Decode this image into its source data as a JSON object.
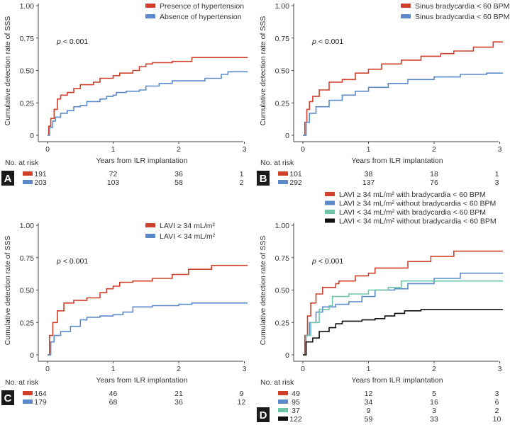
{
  "chart_data": [
    {
      "type": "line",
      "panel": "A",
      "ylabel": "Cumulative detection rate of SSS",
      "xlabel": "Years from ILR implantation",
      "yticks": [
        "0",
        "0.25",
        "0.50",
        "0.75",
        "1.00"
      ],
      "xticks": [
        "0",
        "1",
        "2",
        "3"
      ],
      "ylim": [
        0,
        1
      ],
      "xlim": [
        0,
        3.05
      ],
      "p_text": "< 0.001",
      "p_symbol": "p",
      "risk_label": "No. at risk",
      "legend_position": "top-right",
      "series": [
        {
          "name": "Presence of hypertension",
          "color": "#d0402b",
          "risk": [
            "191",
            "72",
            "36",
            "1"
          ],
          "points": [
            [
              0,
              0
            ],
            [
              0.02,
              0.07
            ],
            [
              0.05,
              0.13
            ],
            [
              0.1,
              0.2
            ],
            [
              0.15,
              0.28
            ],
            [
              0.2,
              0.31
            ],
            [
              0.3,
              0.33
            ],
            [
              0.4,
              0.36
            ],
            [
              0.5,
              0.39
            ],
            [
              0.7,
              0.41
            ],
            [
              0.8,
              0.44
            ],
            [
              1.0,
              0.46
            ],
            [
              1.1,
              0.48
            ],
            [
              1.3,
              0.5
            ],
            [
              1.4,
              0.53
            ],
            [
              1.5,
              0.55
            ],
            [
              1.6,
              0.56
            ],
            [
              1.9,
              0.57
            ],
            [
              2.2,
              0.6
            ],
            [
              3.05,
              0.6
            ]
          ]
        },
        {
          "name": "Absence of hypertension",
          "color": "#5b8ac9",
          "risk": [
            "203",
            "103",
            "58",
            "2"
          ],
          "points": [
            [
              0,
              0
            ],
            [
              0.03,
              0.06
            ],
            [
              0.08,
              0.11
            ],
            [
              0.12,
              0.14
            ],
            [
              0.2,
              0.17
            ],
            [
              0.3,
              0.19
            ],
            [
              0.4,
              0.22
            ],
            [
              0.5,
              0.23
            ],
            [
              0.6,
              0.26
            ],
            [
              0.8,
              0.28
            ],
            [
              0.9,
              0.3
            ],
            [
              1.0,
              0.31
            ],
            [
              1.05,
              0.33
            ],
            [
              1.2,
              0.34
            ],
            [
              1.4,
              0.35
            ],
            [
              1.5,
              0.38
            ],
            [
              1.7,
              0.4
            ],
            [
              1.9,
              0.42
            ],
            [
              2.4,
              0.44
            ],
            [
              2.65,
              0.47
            ],
            [
              2.75,
              0.49
            ],
            [
              3.05,
              0.49
            ]
          ]
        }
      ]
    },
    {
      "type": "line",
      "panel": "B",
      "ylabel": "Cumulative detection rate of SSS",
      "xlabel": "Years from ILR implantation",
      "yticks": [
        "0",
        "0.25",
        "0.50",
        "0.75",
        "1.00"
      ],
      "xticks": [
        "0",
        "1",
        "2",
        "3"
      ],
      "ylim": [
        0,
        1
      ],
      "xlim": [
        0,
        3.05
      ],
      "p_text": "< 0.001",
      "p_symbol": "p",
      "risk_label": "No. at risk",
      "legend_position": "top-right",
      "series": [
        {
          "name": "Sinus bradycardia < 60 BPM (+)",
          "color": "#d0402b",
          "risk": [
            "101",
            "38",
            "18",
            "1"
          ],
          "points": [
            [
              0,
              0
            ],
            [
              0.03,
              0.1
            ],
            [
              0.06,
              0.2
            ],
            [
              0.1,
              0.26
            ],
            [
              0.15,
              0.3
            ],
            [
              0.25,
              0.35
            ],
            [
              0.4,
              0.41
            ],
            [
              0.6,
              0.43
            ],
            [
              0.8,
              0.48
            ],
            [
              1.0,
              0.51
            ],
            [
              1.2,
              0.55
            ],
            [
              1.5,
              0.58
            ],
            [
              1.8,
              0.61
            ],
            [
              2.1,
              0.63
            ],
            [
              2.3,
              0.65
            ],
            [
              2.6,
              0.68
            ],
            [
              2.9,
              0.72
            ],
            [
              3.05,
              0.72
            ]
          ]
        },
        {
          "name": "Sinus bradycardia < 60 BPM (–)",
          "color": "#5b8ac9",
          "risk": [
            "292",
            "137",
            "76",
            "3"
          ],
          "points": [
            [
              0,
              0
            ],
            [
              0.05,
              0.1
            ],
            [
              0.1,
              0.17
            ],
            [
              0.2,
              0.22
            ],
            [
              0.4,
              0.27
            ],
            [
              0.6,
              0.31
            ],
            [
              0.8,
              0.34
            ],
            [
              1.0,
              0.37
            ],
            [
              1.3,
              0.4
            ],
            [
              1.6,
              0.43
            ],
            [
              2.0,
              0.45
            ],
            [
              2.4,
              0.47
            ],
            [
              2.8,
              0.48
            ],
            [
              3.05,
              0.48
            ]
          ]
        }
      ]
    },
    {
      "type": "line",
      "panel": "C",
      "ylabel": "Cumulative detection rate of SSS",
      "xlabel": "Years from ILR implantation",
      "yticks": [
        "0",
        "0.25",
        "0.50",
        "0.75",
        "1.00"
      ],
      "xticks": [
        "0",
        "1",
        "2",
        "3"
      ],
      "ylim": [
        0,
        1
      ],
      "xlim": [
        0,
        3.05
      ],
      "p_text": "< 0.001",
      "p_symbol": "p",
      "risk_label": "No. at risk",
      "legend_position": "top-right",
      "series": [
        {
          "name": "LAVI ≥ 34 mL/m²",
          "color": "#d0402b",
          "risk": [
            "164",
            "46",
            "21",
            "9"
          ],
          "points": [
            [
              0,
              0
            ],
            [
              0.03,
              0.15
            ],
            [
              0.08,
              0.25
            ],
            [
              0.15,
              0.34
            ],
            [
              0.25,
              0.4
            ],
            [
              0.4,
              0.42
            ],
            [
              0.6,
              0.44
            ],
            [
              0.8,
              0.48
            ],
            [
              0.9,
              0.51
            ],
            [
              1.0,
              0.53
            ],
            [
              1.1,
              0.56
            ],
            [
              1.3,
              0.57
            ],
            [
              1.6,
              0.59
            ],
            [
              1.9,
              0.62
            ],
            [
              2.15,
              0.66
            ],
            [
              2.5,
              0.69
            ],
            [
              3.05,
              0.69
            ]
          ]
        },
        {
          "name": "LAVI < 34 mL/m²",
          "color": "#5b8ac9",
          "risk": [
            "179",
            "68",
            "36",
            "12"
          ],
          "points": [
            [
              0,
              0
            ],
            [
              0.05,
              0.1
            ],
            [
              0.1,
              0.15
            ],
            [
              0.2,
              0.18
            ],
            [
              0.35,
              0.22
            ],
            [
              0.5,
              0.27
            ],
            [
              0.6,
              0.29
            ],
            [
              0.8,
              0.3
            ],
            [
              1.0,
              0.31
            ],
            [
              1.15,
              0.33
            ],
            [
              1.3,
              0.37
            ],
            [
              1.6,
              0.38
            ],
            [
              2.0,
              0.39
            ],
            [
              2.2,
              0.4
            ],
            [
              3.05,
              0.4
            ]
          ]
        }
      ]
    },
    {
      "type": "line",
      "panel": "D",
      "ylabel": "Cumulative detection rate of SSS",
      "xlabel": "Years from ILR implantation",
      "yticks": [
        "0",
        "0.25",
        "0.50",
        "0.75",
        "1.00"
      ],
      "xticks": [
        "0",
        "1",
        "2",
        "3"
      ],
      "ylim": [
        0,
        1
      ],
      "xlim": [
        0,
        3.05
      ],
      "p_text": "< 0.001",
      "p_symbol": "p",
      "risk_label": "No. at risk",
      "legend_position": "top-right",
      "series": [
        {
          "name": "LAVI ≥ 34 mL/m² with bradycardia < 60 BPM",
          "color": "#d0402b",
          "risk": [
            "49",
            "12",
            "5",
            "3"
          ],
          "points": [
            [
              0,
              0
            ],
            [
              0.03,
              0.15
            ],
            [
              0.07,
              0.3
            ],
            [
              0.12,
              0.4
            ],
            [
              0.2,
              0.47
            ],
            [
              0.3,
              0.52
            ],
            [
              0.5,
              0.55
            ],
            [
              0.55,
              0.57
            ],
            [
              0.8,
              0.61
            ],
            [
              1.0,
              0.63
            ],
            [
              1.1,
              0.67
            ],
            [
              1.6,
              0.72
            ],
            [
              1.95,
              0.76
            ],
            [
              2.3,
              0.8
            ],
            [
              3.05,
              0.8
            ]
          ]
        },
        {
          "name": "LAVI ≥ 34 mL/m² without bradycardia < 60 BPM",
          "color": "#5b8ac9",
          "risk": [
            "95",
            "34",
            "16",
            "6"
          ],
          "points": [
            [
              0,
              0
            ],
            [
              0.05,
              0.15
            ],
            [
              0.1,
              0.25
            ],
            [
              0.2,
              0.33
            ],
            [
              0.3,
              0.37
            ],
            [
              0.5,
              0.39
            ],
            [
              0.7,
              0.41
            ],
            [
              0.9,
              0.45
            ],
            [
              1.1,
              0.5
            ],
            [
              1.4,
              0.51
            ],
            [
              1.6,
              0.55
            ],
            [
              2.0,
              0.59
            ],
            [
              2.4,
              0.63
            ],
            [
              3.05,
              0.63
            ]
          ]
        },
        {
          "name": "LAVI < 34 mL/m² with bradycardia < 60 BPM",
          "color": "#6cc6a8",
          "risk": [
            "37",
            "9",
            "3",
            "2"
          ],
          "points": [
            [
              0,
              0
            ],
            [
              0.05,
              0.15
            ],
            [
              0.12,
              0.25
            ],
            [
              0.25,
              0.35
            ],
            [
              0.4,
              0.38
            ],
            [
              0.45,
              0.45
            ],
            [
              0.7,
              0.47
            ],
            [
              1.0,
              0.5
            ],
            [
              1.3,
              0.52
            ],
            [
              1.5,
              0.57
            ],
            [
              3.05,
              0.57
            ]
          ]
        },
        {
          "name": "LAVI < 34 mL/m² without bradycardia < 60 BPM",
          "color": "#111111",
          "risk": [
            "122",
            "59",
            "33",
            "10"
          ],
          "points": [
            [
              0,
              0
            ],
            [
              0.05,
              0.1
            ],
            [
              0.15,
              0.13
            ],
            [
              0.25,
              0.18
            ],
            [
              0.4,
              0.21
            ],
            [
              0.5,
              0.24
            ],
            [
              0.6,
              0.26
            ],
            [
              0.9,
              0.27
            ],
            [
              1.1,
              0.28
            ],
            [
              1.25,
              0.3
            ],
            [
              1.4,
              0.32
            ],
            [
              1.55,
              0.34
            ],
            [
              1.8,
              0.35
            ],
            [
              3.05,
              0.35
            ]
          ]
        }
      ]
    }
  ]
}
